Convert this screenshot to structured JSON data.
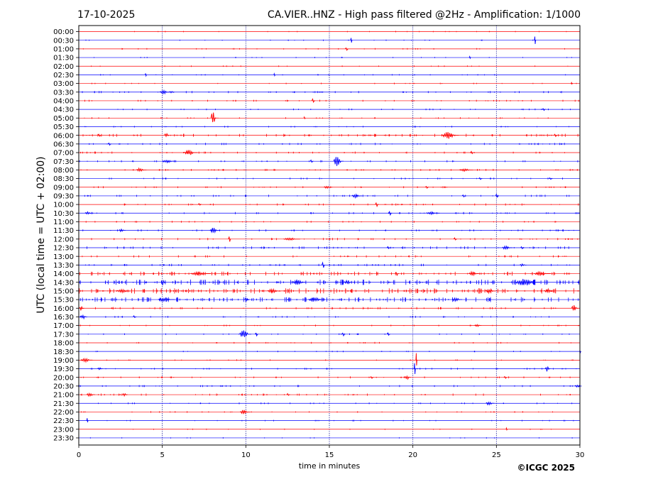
{
  "header": {
    "date": "17-10-2025",
    "title": "CA.VIER..HNZ - High pass filtered @2Hz - Amplification: 1/1000"
  },
  "footer": {
    "copyright": "©ICGC 2025"
  },
  "colors": {
    "red_trace": "#ff0000",
    "blue_trace": "#0000ff",
    "grid": "#00008b"
  },
  "chart_data": {
    "type": "line",
    "xlabel": "time in minutes",
    "ylabel": "UTC (local time = UTC + 02:00)",
    "xlim": [
      0,
      30
    ],
    "x_ticks": [
      0,
      5,
      10,
      15,
      20,
      25,
      30
    ],
    "vertical_grid": [
      5,
      10,
      15,
      20,
      25
    ],
    "rows": [
      {
        "label": "00:00",
        "color": "red",
        "noise": 0.25,
        "events": []
      },
      {
        "label": "00:30",
        "color": "blue",
        "noise": 0.25,
        "events": [
          [
            16.3,
            4,
            0.1
          ],
          [
            27.3,
            7,
            0.1
          ]
        ]
      },
      {
        "label": "01:00",
        "color": "red",
        "noise": 0.3,
        "events": [
          [
            16.0,
            3,
            0.2
          ]
        ]
      },
      {
        "label": "01:30",
        "color": "blue",
        "noise": 0.25,
        "events": [
          [
            23.4,
            2,
            0.1
          ]
        ]
      },
      {
        "label": "02:00",
        "color": "red",
        "noise": 0.25,
        "events": []
      },
      {
        "label": "02:30",
        "color": "blue",
        "noise": 0.3,
        "events": [
          [
            4.0,
            3,
            0.1
          ],
          [
            11.7,
            2,
            0.1
          ]
        ]
      },
      {
        "label": "03:00",
        "color": "red",
        "noise": 0.3,
        "events": [
          [
            29.5,
            2,
            0.1
          ]
        ]
      },
      {
        "label": "03:30",
        "color": "blue",
        "noise": 0.6,
        "events": [
          [
            5.0,
            3,
            0.6
          ],
          [
            5.5,
            2,
            0.3
          ]
        ]
      },
      {
        "label": "04:00",
        "color": "red",
        "noise": 0.5,
        "events": [
          [
            14.0,
            3,
            0.2
          ]
        ]
      },
      {
        "label": "04:30",
        "color": "blue",
        "noise": 0.4,
        "events": [
          [
            27.8,
            2,
            0.2
          ]
        ]
      },
      {
        "label": "05:00",
        "color": "red",
        "noise": 0.4,
        "events": [
          [
            8.0,
            11,
            0.35
          ],
          [
            13.5,
            2,
            0.1
          ]
        ]
      },
      {
        "label": "05:30",
        "color": "blue",
        "noise": 0.4,
        "events": []
      },
      {
        "label": "06:00",
        "color": "red",
        "noise": 1.0,
        "events": [
          [
            22.0,
            5,
            1.0
          ],
          [
            1.2,
            3,
            0.2
          ],
          [
            5.2,
            3,
            0.3
          ],
          [
            28.5,
            3,
            0.2
          ]
        ]
      },
      {
        "label": "06:30",
        "color": "blue",
        "noise": 0.6,
        "events": [
          [
            1.8,
            2,
            0.2
          ]
        ]
      },
      {
        "label": "07:00",
        "color": "red",
        "noise": 0.6,
        "events": [
          [
            6.5,
            4,
            0.8
          ],
          [
            23.5,
            2,
            0.2
          ]
        ]
      },
      {
        "label": "07:30",
        "color": "blue",
        "noise": 0.5,
        "events": [
          [
            15.4,
            8,
            0.6
          ],
          [
            5.2,
            2,
            0.8
          ],
          [
            13.9,
            2,
            0.2
          ]
        ]
      },
      {
        "label": "08:00",
        "color": "red",
        "noise": 0.6,
        "events": [
          [
            3.6,
            3,
            0.6
          ],
          [
            23.0,
            2,
            0.8
          ]
        ]
      },
      {
        "label": "08:30",
        "color": "blue",
        "noise": 0.5,
        "events": [
          [
            28.2,
            2,
            0.2
          ],
          [
            24.0,
            2,
            0.2
          ]
        ]
      },
      {
        "label": "09:00",
        "color": "red",
        "noise": 0.5,
        "events": [
          [
            14.8,
            2,
            0.5
          ],
          [
            20.8,
            2,
            0.2
          ]
        ]
      },
      {
        "label": "09:30",
        "color": "blue",
        "noise": 0.6,
        "events": [
          [
            16.5,
            3,
            0.6
          ],
          [
            25.0,
            3,
            0.2
          ],
          [
            23.0,
            2,
            0.2
          ]
        ]
      },
      {
        "label": "10:00",
        "color": "red",
        "noise": 0.6,
        "events": [
          [
            17.8,
            4,
            0.2
          ],
          [
            7.2,
            2,
            0.2
          ]
        ]
      },
      {
        "label": "10:30",
        "color": "blue",
        "noise": 0.6,
        "events": [
          [
            18.6,
            4,
            0.2
          ],
          [
            21.0,
            2,
            0.8
          ],
          [
            0.5,
            2,
            0.5
          ]
        ]
      },
      {
        "label": "11:00",
        "color": "red",
        "noise": 0.5,
        "events": []
      },
      {
        "label": "11:30",
        "color": "blue",
        "noise": 0.6,
        "events": [
          [
            8.0,
            4,
            0.6
          ],
          [
            2.5,
            2,
            0.4
          ]
        ]
      },
      {
        "label": "12:00",
        "color": "red",
        "noise": 0.6,
        "events": [
          [
            9.0,
            5,
            0.15
          ],
          [
            12.5,
            2,
            1.0
          ],
          [
            22.5,
            2,
            0.2
          ]
        ]
      },
      {
        "label": "12:30",
        "color": "blue",
        "noise": 0.8,
        "events": [
          [
            25.5,
            3,
            0.6
          ],
          [
            18.5,
            2,
            0.2
          ],
          [
            26.5,
            3,
            0.2
          ]
        ]
      },
      {
        "label": "13:00",
        "color": "red",
        "noise": 0.6,
        "events": []
      },
      {
        "label": "13:30",
        "color": "blue",
        "noise": 0.7,
        "events": [
          [
            14.6,
            5,
            0.2
          ],
          [
            26.5,
            2,
            0.4
          ]
        ]
      },
      {
        "label": "14:00",
        "color": "red",
        "noise": 1.4,
        "events": [
          [
            7.0,
            3,
            1.2
          ],
          [
            19.0,
            3,
            0.2
          ],
          [
            23.5,
            3,
            0.6
          ],
          [
            27.5,
            3,
            1.0
          ]
        ]
      },
      {
        "label": "14:30",
        "color": "blue",
        "noise": 2.0,
        "events": [
          [
            5.0,
            4,
            0.3
          ],
          [
            13.0,
            4,
            0.8
          ],
          [
            16.0,
            3,
            0.5
          ],
          [
            26.5,
            5,
            1.5
          ]
        ]
      },
      {
        "label": "15:00",
        "color": "red",
        "noise": 2.0,
        "events": [
          [
            2.5,
            3,
            0.8
          ],
          [
            11.5,
            3,
            0.8
          ],
          [
            24.5,
            3,
            0.6
          ],
          [
            28.0,
            3,
            0.6
          ]
        ]
      },
      {
        "label": "15:30",
        "color": "blue",
        "noise": 1.8,
        "events": [
          [
            5.0,
            3,
            1.0
          ],
          [
            10.0,
            3,
            0.3
          ],
          [
            14.0,
            3,
            1.0
          ],
          [
            22.5,
            3,
            0.6
          ]
        ]
      },
      {
        "label": "16:00",
        "color": "red",
        "noise": 0.7,
        "events": [
          [
            29.6,
            5,
            0.4
          ],
          [
            0.1,
            3,
            0.3
          ]
        ]
      },
      {
        "label": "16:30",
        "color": "blue",
        "noise": 0.5,
        "events": [
          [
            0.2,
            3,
            0.4
          ],
          [
            3.3,
            2,
            0.2
          ]
        ]
      },
      {
        "label": "17:00",
        "color": "red",
        "noise": 0.4,
        "events": [
          [
            23.8,
            2,
            0.4
          ]
        ]
      },
      {
        "label": "17:30",
        "color": "blue",
        "noise": 0.4,
        "events": [
          [
            9.8,
            6,
            0.7
          ],
          [
            10.6,
            3,
            0.2
          ],
          [
            15.8,
            3,
            0.2
          ],
          [
            18.5,
            2,
            0.2
          ]
        ]
      },
      {
        "label": "18:00",
        "color": "red",
        "noise": 0.4,
        "events": []
      },
      {
        "label": "18:30",
        "color": "blue",
        "noise": 0.3,
        "events": [
          [
            30.0,
            2,
            0.1
          ]
        ]
      },
      {
        "label": "19:00",
        "color": "red",
        "noise": 0.3,
        "events": [
          [
            20.2,
            11,
            0.05
          ],
          [
            0.3,
            3,
            0.7
          ]
        ]
      },
      {
        "label": "19:30",
        "color": "blue",
        "noise": 0.5,
        "events": [
          [
            20.1,
            10,
            0.1
          ],
          [
            28.0,
            4,
            0.3
          ],
          [
            1.2,
            2,
            0.3
          ]
        ]
      },
      {
        "label": "20:00",
        "color": "red",
        "noise": 0.5,
        "events": [
          [
            19.6,
            3,
            0.4
          ],
          [
            17.5,
            2,
            0.2
          ],
          [
            25.5,
            2,
            0.2
          ]
        ]
      },
      {
        "label": "20:30",
        "color": "blue",
        "noise": 0.5,
        "events": [
          [
            29.8,
            2,
            0.4
          ]
        ]
      },
      {
        "label": "21:00",
        "color": "red",
        "noise": 0.6,
        "events": [
          [
            0.6,
            3,
            0.5
          ],
          [
            2.7,
            2,
            0.3
          ],
          [
            12.5,
            2,
            0.2
          ]
        ]
      },
      {
        "label": "21:30",
        "color": "blue",
        "noise": 0.4,
        "events": [
          [
            24.5,
            3,
            0.5
          ]
        ]
      },
      {
        "label": "22:00",
        "color": "red",
        "noise": 0.4,
        "events": [
          [
            9.8,
            3,
            0.6
          ]
        ]
      },
      {
        "label": "22:30",
        "color": "blue",
        "noise": 0.3,
        "events": [
          [
            0.5,
            4,
            0.1
          ]
        ]
      },
      {
        "label": "23:00",
        "color": "red",
        "noise": 0.2,
        "events": [
          [
            25.6,
            2,
            0.1
          ]
        ]
      },
      {
        "label": "23:30",
        "color": "blue",
        "noise": 0.2,
        "events": []
      }
    ]
  }
}
